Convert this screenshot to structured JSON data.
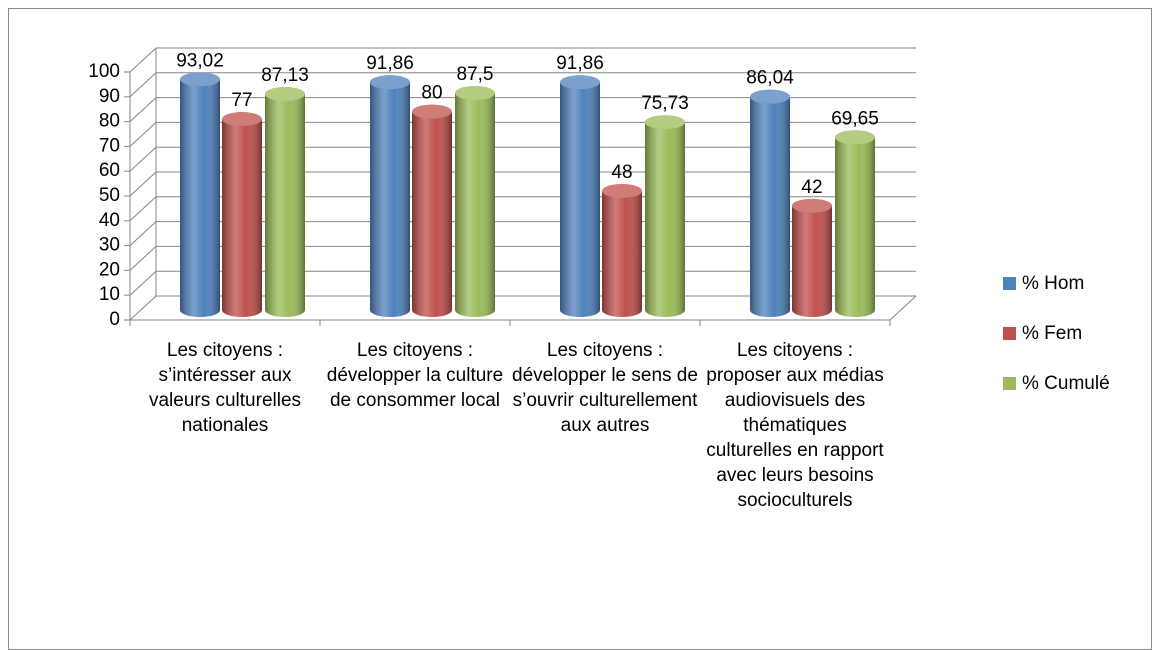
{
  "chart_data": {
    "type": "bar3d",
    "categories": [
      "Les citoyens : s’intéresser aux valeurs culturelles nationales",
      "Les citoyens : développer la culture de consommer local",
      "Les citoyens : développer le sens de s’ouvrir culturellement aux autres",
      "Les citoyens : proposer aux médias audiovisuels des thématiques culturelles en rapport avec leurs besoins socioculturels"
    ],
    "series": [
      {
        "name": "% Hom",
        "color": "#4f81bd",
        "values": [
          93.02,
          91.86,
          91.86,
          86.04
        ],
        "value_labels": [
          "93,02",
          "91,86",
          "91,86",
          "86,04"
        ]
      },
      {
        "name": "% Fem",
        "color": "#c0504d",
        "values": [
          77,
          80,
          48,
          42
        ],
        "value_labels": [
          "77",
          "80",
          "48",
          "42"
        ]
      },
      {
        "name": "% Cumulé",
        "color": "#9bbb59",
        "values": [
          87.13,
          87.5,
          75.73,
          69.65
        ],
        "value_labels": [
          "87,13",
          "87,5",
          "75,73",
          "69,65"
        ]
      }
    ],
    "ylim": [
      0,
      100
    ],
    "yticks": [
      0,
      10,
      20,
      30,
      40,
      50,
      60,
      70,
      80,
      90,
      100
    ],
    "grid": true,
    "legend": "right"
  }
}
